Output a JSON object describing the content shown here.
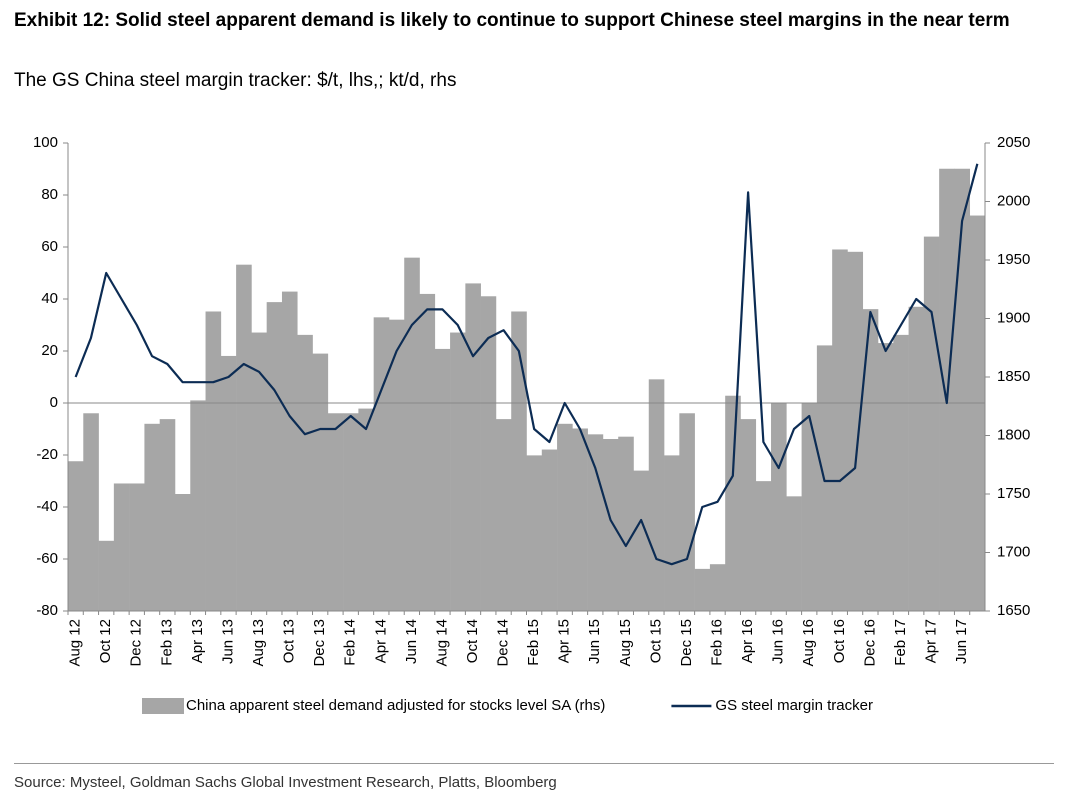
{
  "chart_data": {
    "type": "bar",
    "title": "Exhibit 12: Solid steel apparent demand is likely to continue to support Chinese steel margins in the near term",
    "subtitle": "The GS China steel margin tracker: $/t, lhs,; kt/d, rhs",
    "source": "Source: Mysteel, Goldman Sachs Global Investment Research, Platts, Bloomberg",
    "categories": [
      "Aug 12",
      null,
      "Oct 12",
      null,
      "Dec 12",
      null,
      "Feb 13",
      null,
      "Apr 13",
      null,
      "Jun 13",
      null,
      "Aug 13",
      null,
      "Oct 13",
      null,
      "Dec 13",
      null,
      "Feb 14",
      null,
      "Apr 14",
      null,
      "Jun 14",
      null,
      "Aug 14",
      null,
      "Oct 14",
      null,
      "Dec 14",
      null,
      "Feb 15",
      null,
      "Apr 15",
      null,
      "Jun 15",
      null,
      "Aug 15",
      null,
      "Oct 15",
      null,
      "Dec 15",
      null,
      "Feb 16",
      null,
      "Apr 16",
      null,
      "Jun 16",
      null,
      "Aug 16",
      null,
      "Oct 16",
      null,
      "Dec 16",
      null,
      "Feb 17",
      null,
      "Apr 17",
      null,
      "Jun 17",
      null
    ],
    "series": [
      {
        "name": "China apparent steel demand adjusted for stocks level SA (rhs)",
        "type": "bar",
        "axis": "y2",
        "color": "#a6a6a6",
        "values": [
          1778,
          1819,
          1710,
          1759,
          1759,
          1810,
          1814,
          1750,
          1830,
          1906,
          1868,
          1946,
          1888,
          1914,
          1923,
          1886,
          1870,
          1819,
          1819,
          1823,
          1901,
          1899,
          1952,
          1921,
          1874,
          1888,
          1930,
          1919,
          1814,
          1906,
          1783,
          1788,
          1810,
          1806,
          1801,
          1797,
          1799,
          1770,
          1848,
          1783,
          1819,
          1686,
          1690,
          1834,
          1814,
          1761,
          1828,
          1748,
          1828,
          1877,
          1959,
          1957,
          1908,
          1879,
          1886,
          1910,
          1970,
          2028,
          2028,
          1988
        ]
      },
      {
        "name": "GS steel margin tracker",
        "type": "line",
        "color": "#0c2c54",
        "values": [
          10,
          25,
          50,
          40,
          30,
          18,
          15,
          8,
          8,
          8,
          10,
          15,
          12,
          5,
          -5,
          -12,
          -10,
          -10,
          -5,
          -10,
          5,
          20,
          30,
          36,
          36,
          30,
          18,
          25,
          28,
          20,
          -10,
          -15,
          0,
          -10,
          -25,
          -45,
          -55,
          -45,
          -60,
          -62,
          -60,
          -40,
          -38,
          -28,
          81,
          -15,
          -25,
          -10,
          -5,
          -30,
          -30,
          -25,
          35,
          20,
          30,
          40,
          35,
          0,
          70,
          92
        ]
      }
    ],
    "ylim": [
      -80,
      100
    ],
    "yticks": [
      -80,
      -60,
      -40,
      -20,
      0,
      20,
      40,
      60,
      80,
      100
    ],
    "y2lim": [
      1650,
      2050
    ],
    "y2ticks": [
      1650,
      1700,
      1750,
      1800,
      1850,
      1900,
      1950,
      2000,
      2050
    ]
  }
}
